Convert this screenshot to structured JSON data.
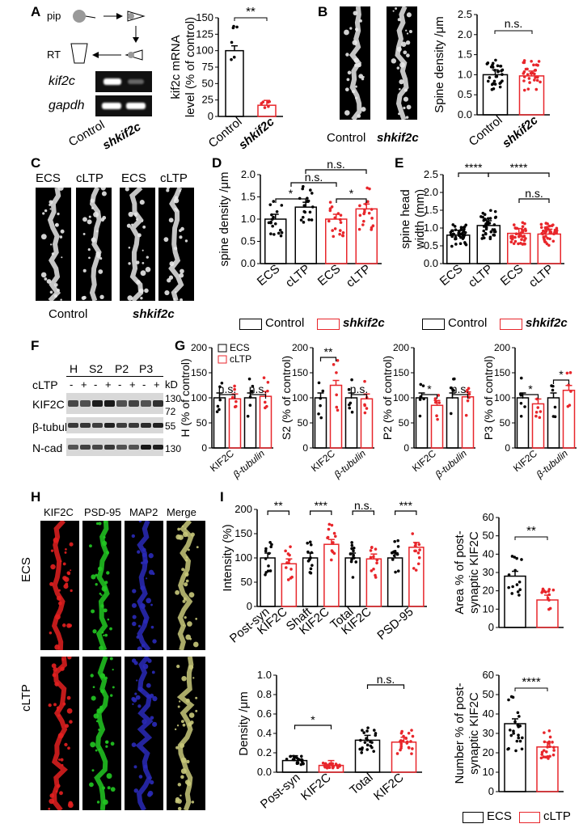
{
  "panels": {
    "A": {
      "letter": "A",
      "schematic": {
        "pip": "pip",
        "rt": "RT"
      },
      "gel_labels": [
        "kif2c",
        "gapdh"
      ],
      "lane_labels": [
        "Control",
        "shkif2c"
      ],
      "chart_data": {
        "type": "bar",
        "categories": [
          "Control",
          "shkif2c"
        ],
        "values": [
          100,
          17
        ],
        "ylabel": "kif2c mRNA level (% of control)",
        "ylim": [
          0,
          150
        ],
        "yticks": [
          0,
          25,
          50,
          75,
          100,
          125,
          150
        ],
        "significance": "**"
      }
    },
    "B": {
      "letter": "B",
      "image_labels": [
        "Control",
        "shkif2c"
      ],
      "chart_data": {
        "type": "bar",
        "categories": [
          "Control",
          "shkif2c"
        ],
        "values": [
          1.0,
          0.97
        ],
        "ylabel": "Spine density /μm",
        "ylim": [
          0,
          2.5
        ],
        "yticks": [
          0.0,
          0.5,
          1.0,
          1.5,
          2.0,
          2.5
        ],
        "significance": "n.s."
      }
    },
    "C": {
      "letter": "C",
      "image_labels": [
        "ECS",
        "cLTP",
        "ECS",
        "cLTP"
      ],
      "group_labels": [
        "Control",
        "shkif2c"
      ]
    },
    "D": {
      "letter": "D",
      "chart_data": {
        "type": "bar",
        "categories": [
          "ECS",
          "cLTP",
          "ECS",
          "cLTP"
        ],
        "values": [
          1.0,
          1.27,
          1.0,
          1.23
        ],
        "ylabel": "spine density /μm",
        "ylim": [
          0,
          2.0
        ],
        "yticks": [
          0.0,
          0.5,
          1.0,
          1.5,
          2.0
        ],
        "significance": [
          "*",
          "n.s.",
          "*",
          "n.s."
        ]
      }
    },
    "E": {
      "letter": "E",
      "chart_data": {
        "type": "bar",
        "categories": [
          "ECS",
          "cLTP",
          "ECS",
          "cLTP"
        ],
        "values": [
          0.8,
          1.07,
          0.85,
          0.83
        ],
        "ylabel": "spine head width (mm)",
        "ylim": [
          0,
          2.5
        ],
        "yticks": [
          0.0,
          0.5,
          1.0,
          1.5,
          2.0,
          2.5
        ],
        "significance": [
          "****",
          "****",
          "n.s."
        ]
      }
    },
    "F": {
      "letter": "F",
      "fractions": [
        "H",
        "S2",
        "P2",
        "P3"
      ],
      "treatment_label": "cLTP",
      "signs": [
        "-",
        "+",
        "-",
        "+",
        "-",
        "+",
        "-",
        "+"
      ],
      "rows": [
        "KIF2C",
        "β-tubulin",
        "N-cad"
      ],
      "kd_label": "kD",
      "markers": [
        "130",
        "72",
        "55",
        "130"
      ]
    },
    "G": {
      "letter": "G",
      "chart_data": [
        {
          "type": "bar",
          "ylabel": "H (% of control)",
          "categories": [
            "KIF2C",
            "β-tubulin"
          ],
          "series": [
            {
              "name": "ECS",
              "values": [
                100,
                100
              ]
            },
            {
              "name": "cLTP",
              "values": [
                98,
                103
              ]
            }
          ],
          "ylim": [
            0,
            200
          ],
          "significance": [
            "n.s.",
            "n.s."
          ]
        },
        {
          "type": "bar",
          "ylabel": "S2 (% of control)",
          "categories": [
            "KIF2C",
            "β-tubulin"
          ],
          "series": [
            {
              "name": "ECS",
              "values": [
                100,
                100
              ]
            },
            {
              "name": "cLTP",
              "values": [
                125,
                98
              ]
            }
          ],
          "ylim": [
            0,
            200
          ],
          "significance": [
            "**",
            "n.s."
          ]
        },
        {
          "type": "bar",
          "ylabel": "P2 (% of control)",
          "categories": [
            "KIF2C",
            "β-tubulin"
          ],
          "series": [
            {
              "name": "ECS",
              "values": [
                100,
                100
              ]
            },
            {
              "name": "cLTP",
              "values": [
                85,
                102
              ]
            }
          ],
          "ylim": [
            0,
            200
          ],
          "significance": [
            "*",
            "n.s."
          ]
        },
        {
          "type": "bar",
          "ylabel": "P3 (% of control)",
          "categories": [
            "KIF2C",
            "β-tubulin"
          ],
          "series": [
            {
              "name": "ECS",
              "values": [
                100,
                100
              ]
            },
            {
              "name": "cLTP",
              "values": [
                88,
                115
              ]
            }
          ],
          "ylim": [
            0,
            200
          ],
          "significance": [
            "*",
            "*"
          ]
        }
      ],
      "legend": [
        "ECS",
        "cLTP"
      ],
      "yticks": [
        0,
        50,
        100,
        150,
        200
      ]
    },
    "H": {
      "letter": "H",
      "columns": [
        "KIF2C",
        "PSD-95",
        "MAP2",
        "Merge"
      ],
      "rows": [
        "ECS",
        "cLTP"
      ]
    },
    "I": {
      "letter": "I",
      "intensity": {
        "type": "bar",
        "ylabel": "Intensity (%)",
        "categories": [
          "Post-syn KIF2C",
          "Shaft KIF2C",
          "Total KIF2C",
          "PSD-95"
        ],
        "series": [
          {
            "name": "ECS",
            "values": [
              100,
              100,
              100,
              100
            ]
          },
          {
            "name": "cLTP",
            "values": [
              88,
              128,
              98,
              122
            ]
          }
        ],
        "ylim": [
          0,
          200
        ],
        "yticks": [
          0,
          50,
          100,
          150,
          200
        ],
        "significance": [
          "**",
          "***",
          "n.s.",
          "***"
        ]
      },
      "area": {
        "type": "bar",
        "ylabel": "Area % of post-synaptic KIF2C",
        "categories": [
          "ECS",
          "cLTP"
        ],
        "values": [
          28,
          15
        ],
        "ylim": [
          0,
          60
        ],
        "yticks": [
          0,
          10,
          20,
          30,
          40,
          50,
          60
        ],
        "significance": "**"
      },
      "density": {
        "type": "bar",
        "ylabel": "Density /μm",
        "categories": [
          "Post-syn KIF2C",
          "Total KIF2C"
        ],
        "series": [
          {
            "name": "ECS",
            "values": [
              0.12,
              0.33
            ]
          },
          {
            "name": "cLTP",
            "values": [
              0.07,
              0.31
            ]
          }
        ],
        "ylim": [
          0,
          1.0
        ],
        "yticks": [
          0.0,
          0.2,
          0.4,
          0.6,
          0.8,
          1.0
        ],
        "significance": [
          "*",
          "n.s."
        ]
      },
      "number": {
        "type": "bar",
        "ylabel": "Number % of post-synaptic KIF2C",
        "categories": [
          "ECS",
          "cLTP"
        ],
        "values": [
          35,
          23
        ],
        "ylim": [
          0,
          60
        ],
        "yticks": [
          0,
          10,
          20,
          30,
          40,
          50,
          60
        ],
        "significance": "****"
      }
    }
  },
  "legend_control": [
    "Control",
    "shkif2c"
  ],
  "legend_ecs": [
    "ECS",
    "cLTP"
  ],
  "colors": {
    "control": "#000000",
    "treatment": "#e8262b"
  }
}
